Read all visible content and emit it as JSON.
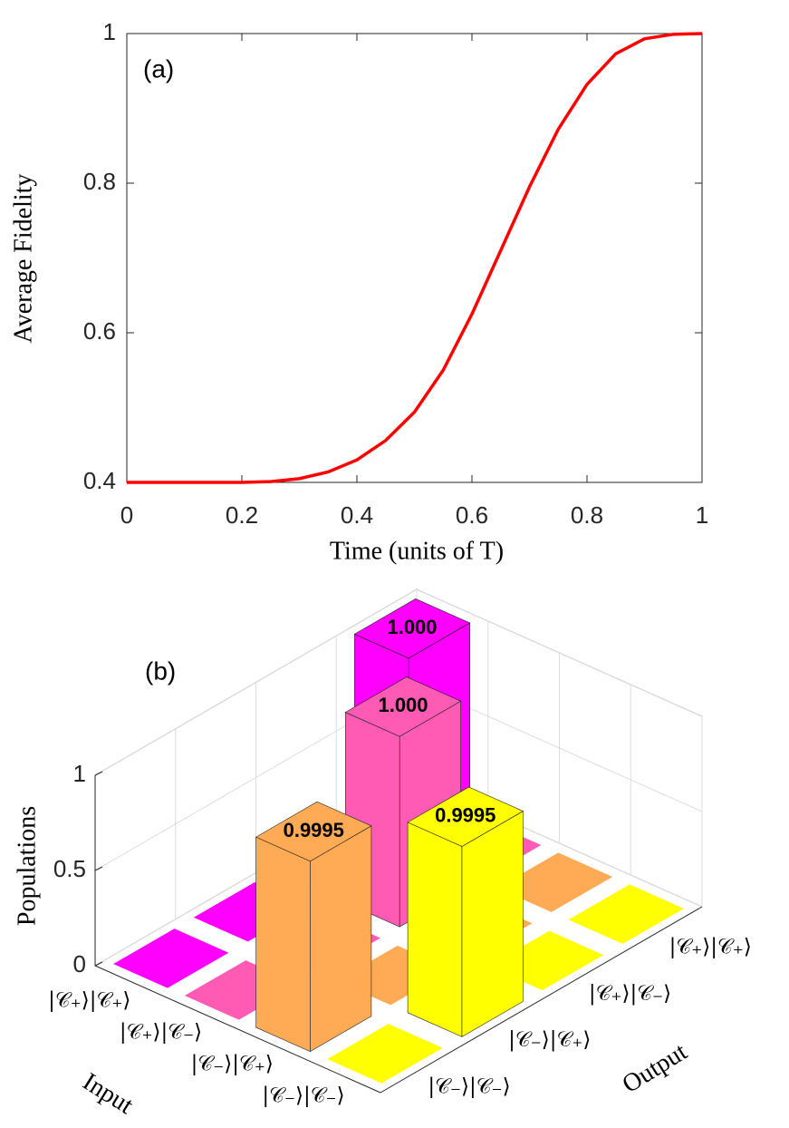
{
  "chart_data": [
    {
      "type": "line",
      "title": "(a)",
      "xlabel": "Time (units of T)",
      "ylabel": "Average Fidelity",
      "x": [
        0,
        0.05,
        0.1,
        0.15,
        0.2,
        0.25,
        0.3,
        0.35,
        0.4,
        0.45,
        0.5,
        0.55,
        0.6,
        0.65,
        0.7,
        0.75,
        0.8,
        0.85,
        0.9,
        0.95,
        1
      ],
      "series": [
        {
          "color": "#ff0000",
          "values": [
            0.4,
            0.4,
            0.4,
            0.4,
            0.4,
            0.401,
            0.405,
            0.414,
            0.43,
            0.456,
            0.494,
            0.55,
            0.625,
            0.71,
            0.795,
            0.872,
            0.932,
            0.973,
            0.993,
            0.999,
            1
          ]
        }
      ],
      "xlim": [
        0,
        1
      ],
      "ylim": [
        0.4,
        1
      ],
      "xticks": [
        0,
        0.2,
        0.4,
        0.6,
        0.8,
        1
      ],
      "yticks": [
        0.4,
        0.6,
        0.8,
        1
      ]
    },
    {
      "type": "bar3d",
      "title": "(b)",
      "xlabel": "Input",
      "ylabel": "Output",
      "zlabel": "Populations",
      "input_categories": [
        "|𝒞₊⟩|𝒞₊⟩",
        "|𝒞₊⟩|𝒞₋⟩",
        "|𝒞₋⟩|𝒞₊⟩",
        "|𝒞₋⟩|𝒞₋⟩"
      ],
      "output_categories": [
        "|𝒞₊⟩|𝒞₊⟩",
        "|𝒞₊⟩|𝒞₋⟩",
        "|𝒞₋⟩|𝒞₊⟩",
        "|𝒞₋⟩|𝒞₋⟩"
      ],
      "colors": [
        "#ff00ff",
        "#ff5ab4",
        "#ffaa55",
        "#ffff00"
      ],
      "values": [
        [
          1,
          0,
          0,
          0
        ],
        [
          0,
          1,
          0,
          0
        ],
        [
          0,
          0,
          0,
          0.9995
        ],
        [
          0,
          0,
          0.9995,
          0
        ]
      ],
      "value_labels": [
        [
          "1.000",
          null,
          null,
          null
        ],
        [
          null,
          "1.000",
          null,
          null
        ],
        [
          null,
          null,
          null,
          "0.9995"
        ],
        [
          null,
          null,
          "0.9995",
          null
        ]
      ],
      "zlim": [
        0,
        1
      ],
      "zticks": [
        0,
        0.5,
        1
      ]
    }
  ]
}
